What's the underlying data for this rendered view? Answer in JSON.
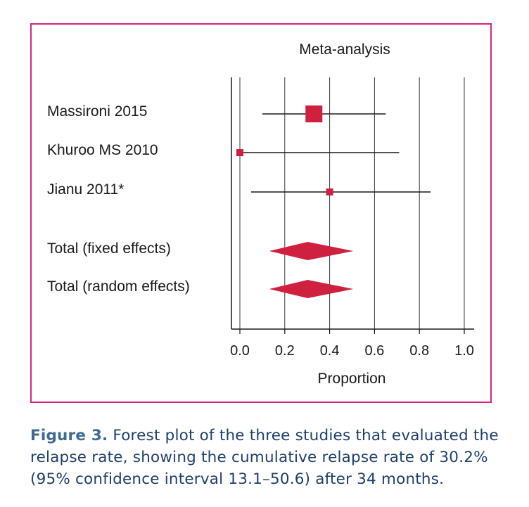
{
  "chart_data": {
    "type": "forest",
    "title": "Meta-analysis",
    "xlabel": "Proportion",
    "xlim": [
      0.0,
      1.0
    ],
    "xticks": [
      "0.0",
      "0.2",
      "0.4",
      "0.6",
      "0.8",
      "1.0"
    ],
    "grid": true,
    "studies": [
      {
        "name": "Massironi 2015",
        "estimate": 0.33,
        "lower": 0.1,
        "upper": 0.65,
        "weight": "large"
      },
      {
        "name": "Khuroo MS 2010",
        "estimate": 0.0,
        "lower": 0.0,
        "upper": 0.71,
        "weight": "small"
      },
      {
        "name": "Jianu 2011*",
        "estimate": 0.4,
        "lower": 0.05,
        "upper": 0.85,
        "weight": "small"
      }
    ],
    "pooled": [
      {
        "name": "Total (fixed effects)",
        "estimate": 0.302,
        "lower": 0.131,
        "upper": 0.506
      },
      {
        "name": "Total (random effects)",
        "estimate": 0.302,
        "lower": 0.131,
        "upper": 0.506
      }
    ],
    "marker_color": "#d0203f"
  },
  "caption": {
    "label": "Figure 3.",
    "text": "Forest plot of the three studies that evaluated the relapse rate, showing the cumulative relapse rate of 30.2% (95% confidence interval 13.1–50.6) after 34 months."
  }
}
